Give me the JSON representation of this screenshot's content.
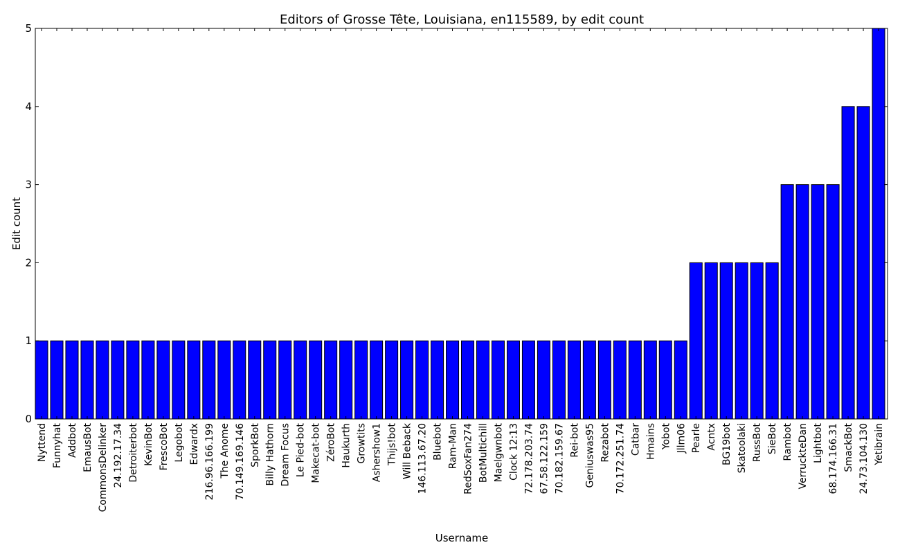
{
  "chart_data": {
    "type": "bar",
    "title": "Editors of Grosse Tête, Louisiana, en115589, by edit count",
    "xlabel": "Username",
    "ylabel": "Edit count",
    "ylim": [
      0,
      5
    ],
    "yticks": [
      0,
      1,
      2,
      3,
      4,
      5
    ],
    "grid": false,
    "bar_color": "#0000ff",
    "categories": [
      "Nyttend",
      "Funnyhat",
      "Addbot",
      "EmausBot",
      "CommonsDelinker",
      "24.192.17.34",
      "Detroiterbot",
      "KevinBot",
      "FrescoBot",
      "Legobot",
      "Edwardx",
      "216.96.166.199",
      "The Anome",
      "70.149.169.146",
      "SporkBot",
      "Billy Hathorn",
      "Dream Focus",
      "Le Pied-bot",
      "Makecat-bot",
      "ZéroBot",
      "Haukurth",
      "Growtits",
      "Ashershow1",
      "Thijs!bot",
      "Will Beback",
      "146.113.67.20",
      "Bluebot",
      "Ram-Man",
      "RedSoxFan274",
      "BotMultichill",
      "Maelgwnbot",
      "Clock 12:13",
      "72.178.203.74",
      "67.58.122.159",
      "70.182.159.67",
      "Rei-bot",
      "Geniuswas95",
      "Rezabot",
      "70.172.251.74",
      "Catbar",
      "Hmains",
      "Yobot",
      "Jllm06",
      "Pearle",
      "Acntx",
      "BG19bot",
      "Skatoolaki",
      "RussBot",
      "SieBot",
      "Rambot",
      "VerruckteDan",
      "Lightbot",
      "68.174.166.31",
      "SmackBot",
      "24.73.104.130",
      "Yetibrain"
    ],
    "values": [
      1,
      1,
      1,
      1,
      1,
      1,
      1,
      1,
      1,
      1,
      1,
      1,
      1,
      1,
      1,
      1,
      1,
      1,
      1,
      1,
      1,
      1,
      1,
      1,
      1,
      1,
      1,
      1,
      1,
      1,
      1,
      1,
      1,
      1,
      1,
      1,
      1,
      1,
      1,
      1,
      1,
      1,
      1,
      2,
      2,
      2,
      2,
      2,
      2,
      3,
      3,
      3,
      3,
      4,
      4,
      5
    ]
  }
}
